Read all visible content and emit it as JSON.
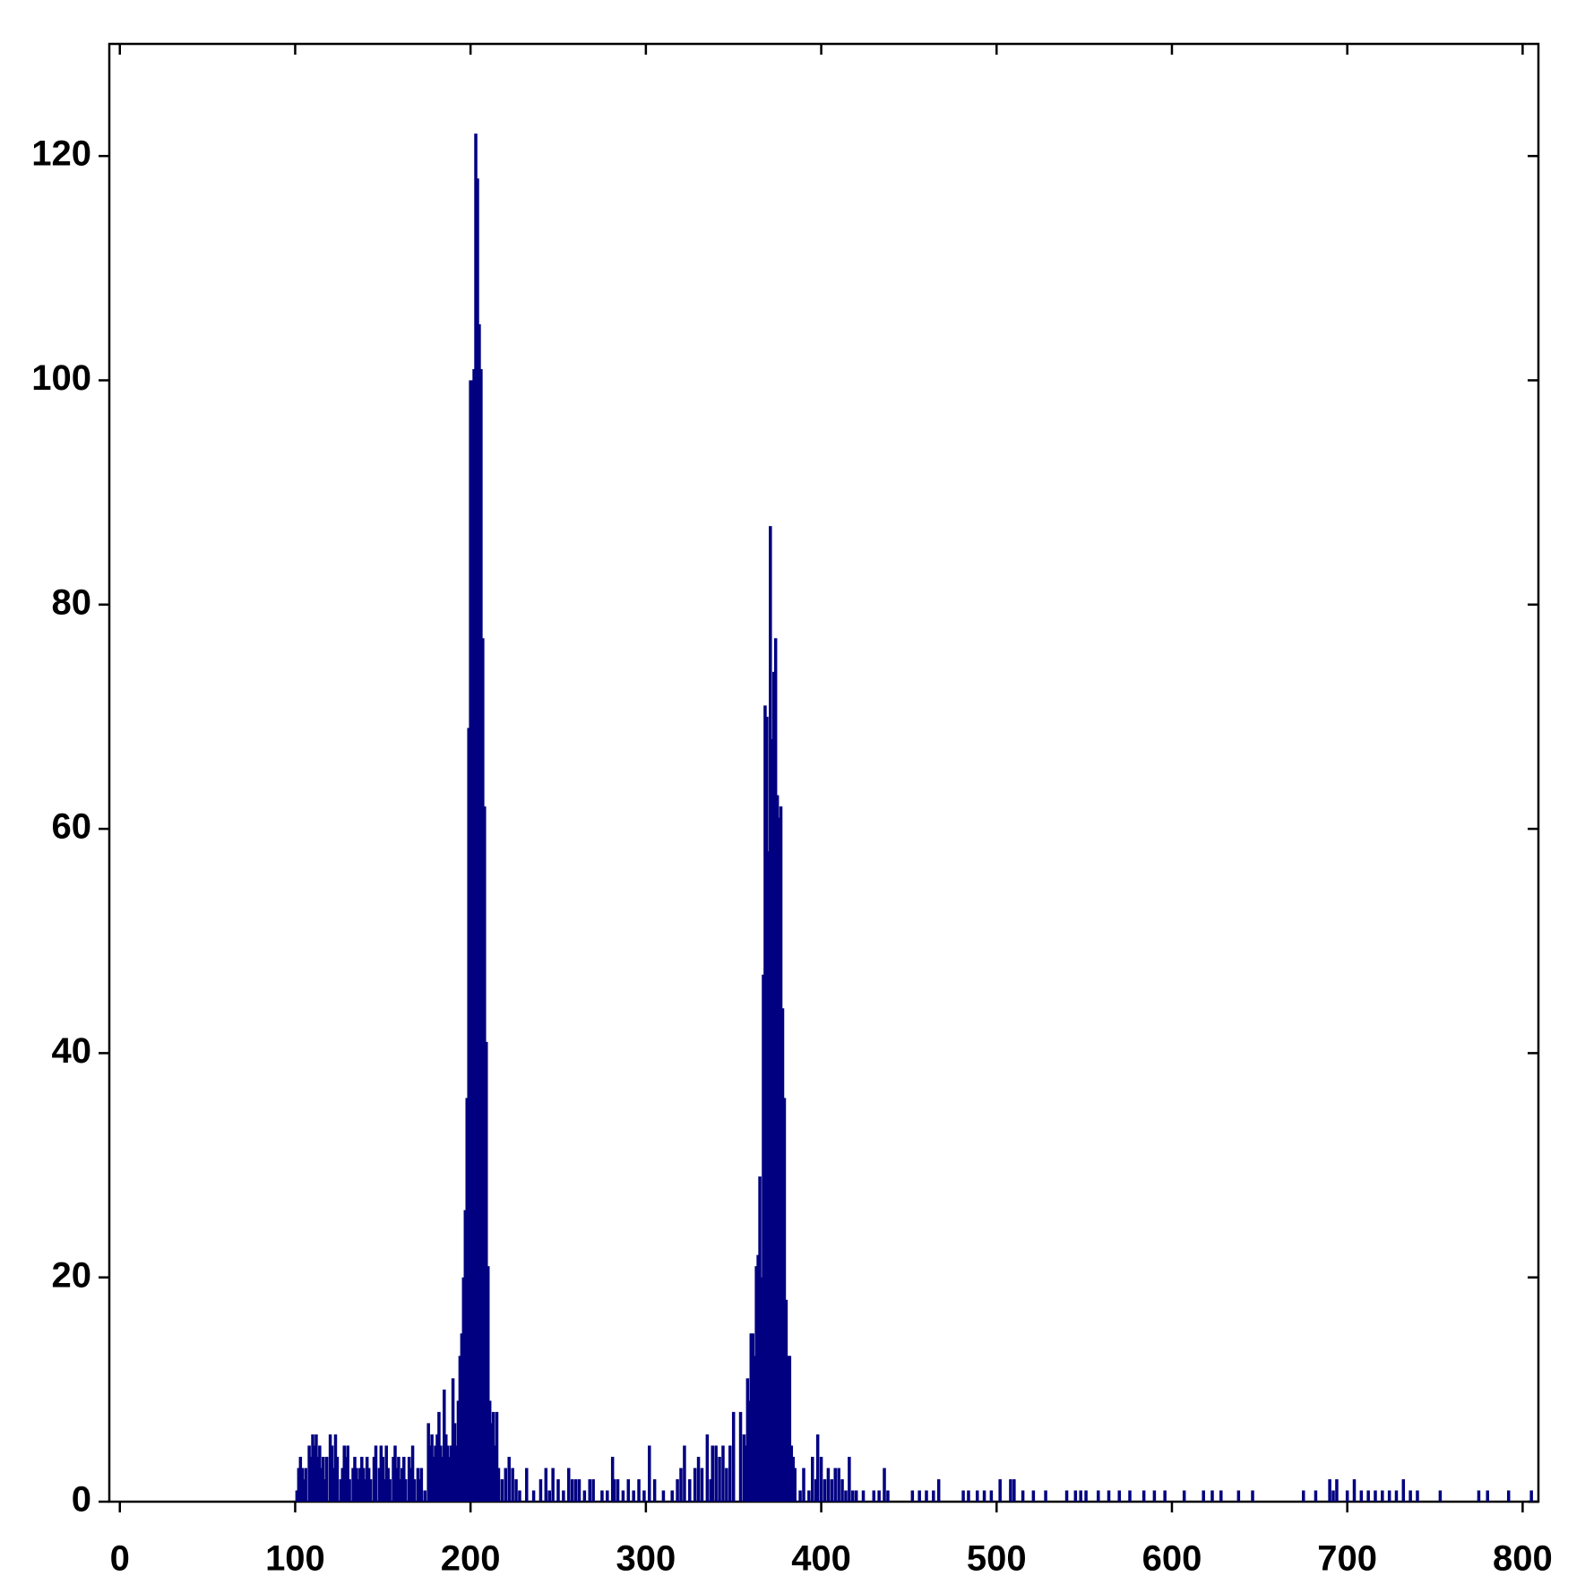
{
  "chart_data": {
    "type": "bar",
    "x": [
      101,
      102,
      103,
      104,
      105,
      106,
      108,
      109,
      110,
      111,
      112,
      113,
      114,
      115,
      116,
      117,
      118,
      120,
      121,
      122,
      123,
      124,
      126,
      127,
      128,
      129,
      130,
      131,
      133,
      134,
      135,
      136,
      137,
      138,
      139,
      140,
      141,
      142,
      143,
      145,
      146,
      148,
      149,
      150,
      151,
      152,
      153,
      154,
      156,
      157,
      158,
      159,
      160,
      161,
      162,
      163,
      165,
      166,
      167,
      168,
      170,
      171,
      172,
      174,
      176,
      177,
      178,
      179,
      180,
      181,
      182,
      183,
      184,
      185,
      186,
      187,
      188,
      189,
      190,
      191,
      192,
      193,
      194,
      195,
      196,
      197,
      198,
      199,
      200,
      201,
      202,
      203,
      204,
      205,
      206,
      207,
      208,
      209,
      210,
      211,
      212,
      213,
      214,
      215,
      216,
      218,
      220,
      222,
      224,
      226,
      228,
      232,
      236,
      240,
      243,
      245,
      247,
      250,
      253,
      256,
      258,
      260,
      262,
      265,
      268,
      270,
      275,
      278,
      281,
      282,
      284,
      287,
      290,
      293,
      296,
      299,
      302,
      305,
      310,
      315,
      318,
      320,
      322,
      325,
      328,
      330,
      332,
      335,
      337,
      338,
      340,
      342,
      344,
      346,
      348,
      350,
      354,
      356,
      357,
      358,
      359,
      360,
      361,
      362,
      363,
      364,
      365,
      366,
      367,
      368,
      369,
      370,
      371,
      372,
      373,
      374,
      375,
      376,
      377,
      378,
      379,
      380,
      381,
      382,
      383,
      384,
      385,
      388,
      390,
      393,
      395,
      397,
      398,
      400,
      402,
      404,
      406,
      408,
      410,
      412,
      414,
      416,
      418,
      420,
      424,
      430,
      433,
      436,
      438,
      452,
      456,
      460,
      464,
      467,
      481,
      484,
      489,
      493,
      497,
      502,
      508,
      510,
      515,
      521,
      528,
      540,
      545,
      548,
      551,
      558,
      564,
      570,
      576,
      584,
      590,
      596,
      607,
      618,
      623,
      628,
      638,
      646,
      675,
      682,
      690,
      692,
      694,
      700,
      704,
      708,
      712,
      716,
      720,
      724,
      728,
      732,
      736,
      740,
      753,
      775,
      780,
      792,
      805
    ],
    "values": [
      1,
      3,
      4,
      3,
      2,
      3,
      5,
      4,
      6,
      5,
      6,
      4,
      5,
      3,
      4,
      2,
      4,
      6,
      5,
      3,
      6,
      4,
      2,
      3,
      5,
      4,
      5,
      2,
      3,
      4,
      3,
      2,
      3,
      4,
      3,
      2,
      4,
      3,
      2,
      4,
      5,
      3,
      5,
      4,
      2,
      5,
      3,
      2,
      4,
      5,
      3,
      4,
      2,
      3,
      4,
      2,
      4,
      3,
      5,
      2,
      3,
      2,
      3,
      1,
      7,
      5,
      6,
      4,
      5,
      6,
      8,
      5,
      4,
      10,
      6,
      5,
      4,
      5,
      11,
      7,
      5,
      9,
      13,
      15,
      20,
      26,
      36,
      69,
      100,
      100,
      101,
      122,
      118,
      105,
      101,
      77,
      62,
      41,
      21,
      9,
      7,
      8,
      5,
      8,
      3,
      2,
      3,
      4,
      3,
      2,
      1,
      3,
      1,
      2,
      3,
      1,
      3,
      2,
      1,
      3,
      2,
      2,
      2,
      1,
      2,
      2,
      1,
      1,
      4,
      2,
      2,
      1,
      2,
      1,
      2,
      1,
      5,
      2,
      1,
      1,
      2,
      3,
      5,
      2,
      3,
      4,
      3,
      6,
      2,
      5,
      5,
      4,
      5,
      3,
      5,
      8,
      8,
      6,
      5,
      11,
      9,
      15,
      15,
      13,
      21,
      22,
      29,
      20,
      47,
      71,
      70,
      58,
      87,
      68,
      74,
      77,
      63,
      61,
      62,
      44,
      36,
      18,
      13,
      13,
      5,
      4,
      3,
      1,
      3,
      1,
      4,
      2,
      6,
      4,
      2,
      3,
      2,
      3,
      3,
      2,
      1,
      4,
      1,
      1,
      1,
      1,
      1,
      3,
      1,
      1,
      1,
      1,
      1,
      2,
      1,
      1,
      1,
      1,
      1,
      2,
      2,
      2,
      1,
      1,
      1,
      1,
      1,
      1,
      1,
      1,
      1,
      1,
      1,
      1,
      1,
      1,
      1,
      1,
      1,
      1,
      1,
      1,
      1,
      1,
      2,
      1,
      2,
      1,
      2,
      1,
      1,
      1,
      1,
      1,
      1,
      2,
      1,
      1,
      1,
      1,
      1,
      1,
      1
    ],
    "color": "#000080",
    "xlim": [
      -6,
      809
    ],
    "xticks": [
      0,
      100,
      200,
      300,
      400,
      500,
      600,
      700,
      800
    ],
    "ylim": [
      0,
      130
    ],
    "yticks": [
      0,
      20,
      40,
      60,
      80,
      100,
      120
    ],
    "grid": false
  }
}
